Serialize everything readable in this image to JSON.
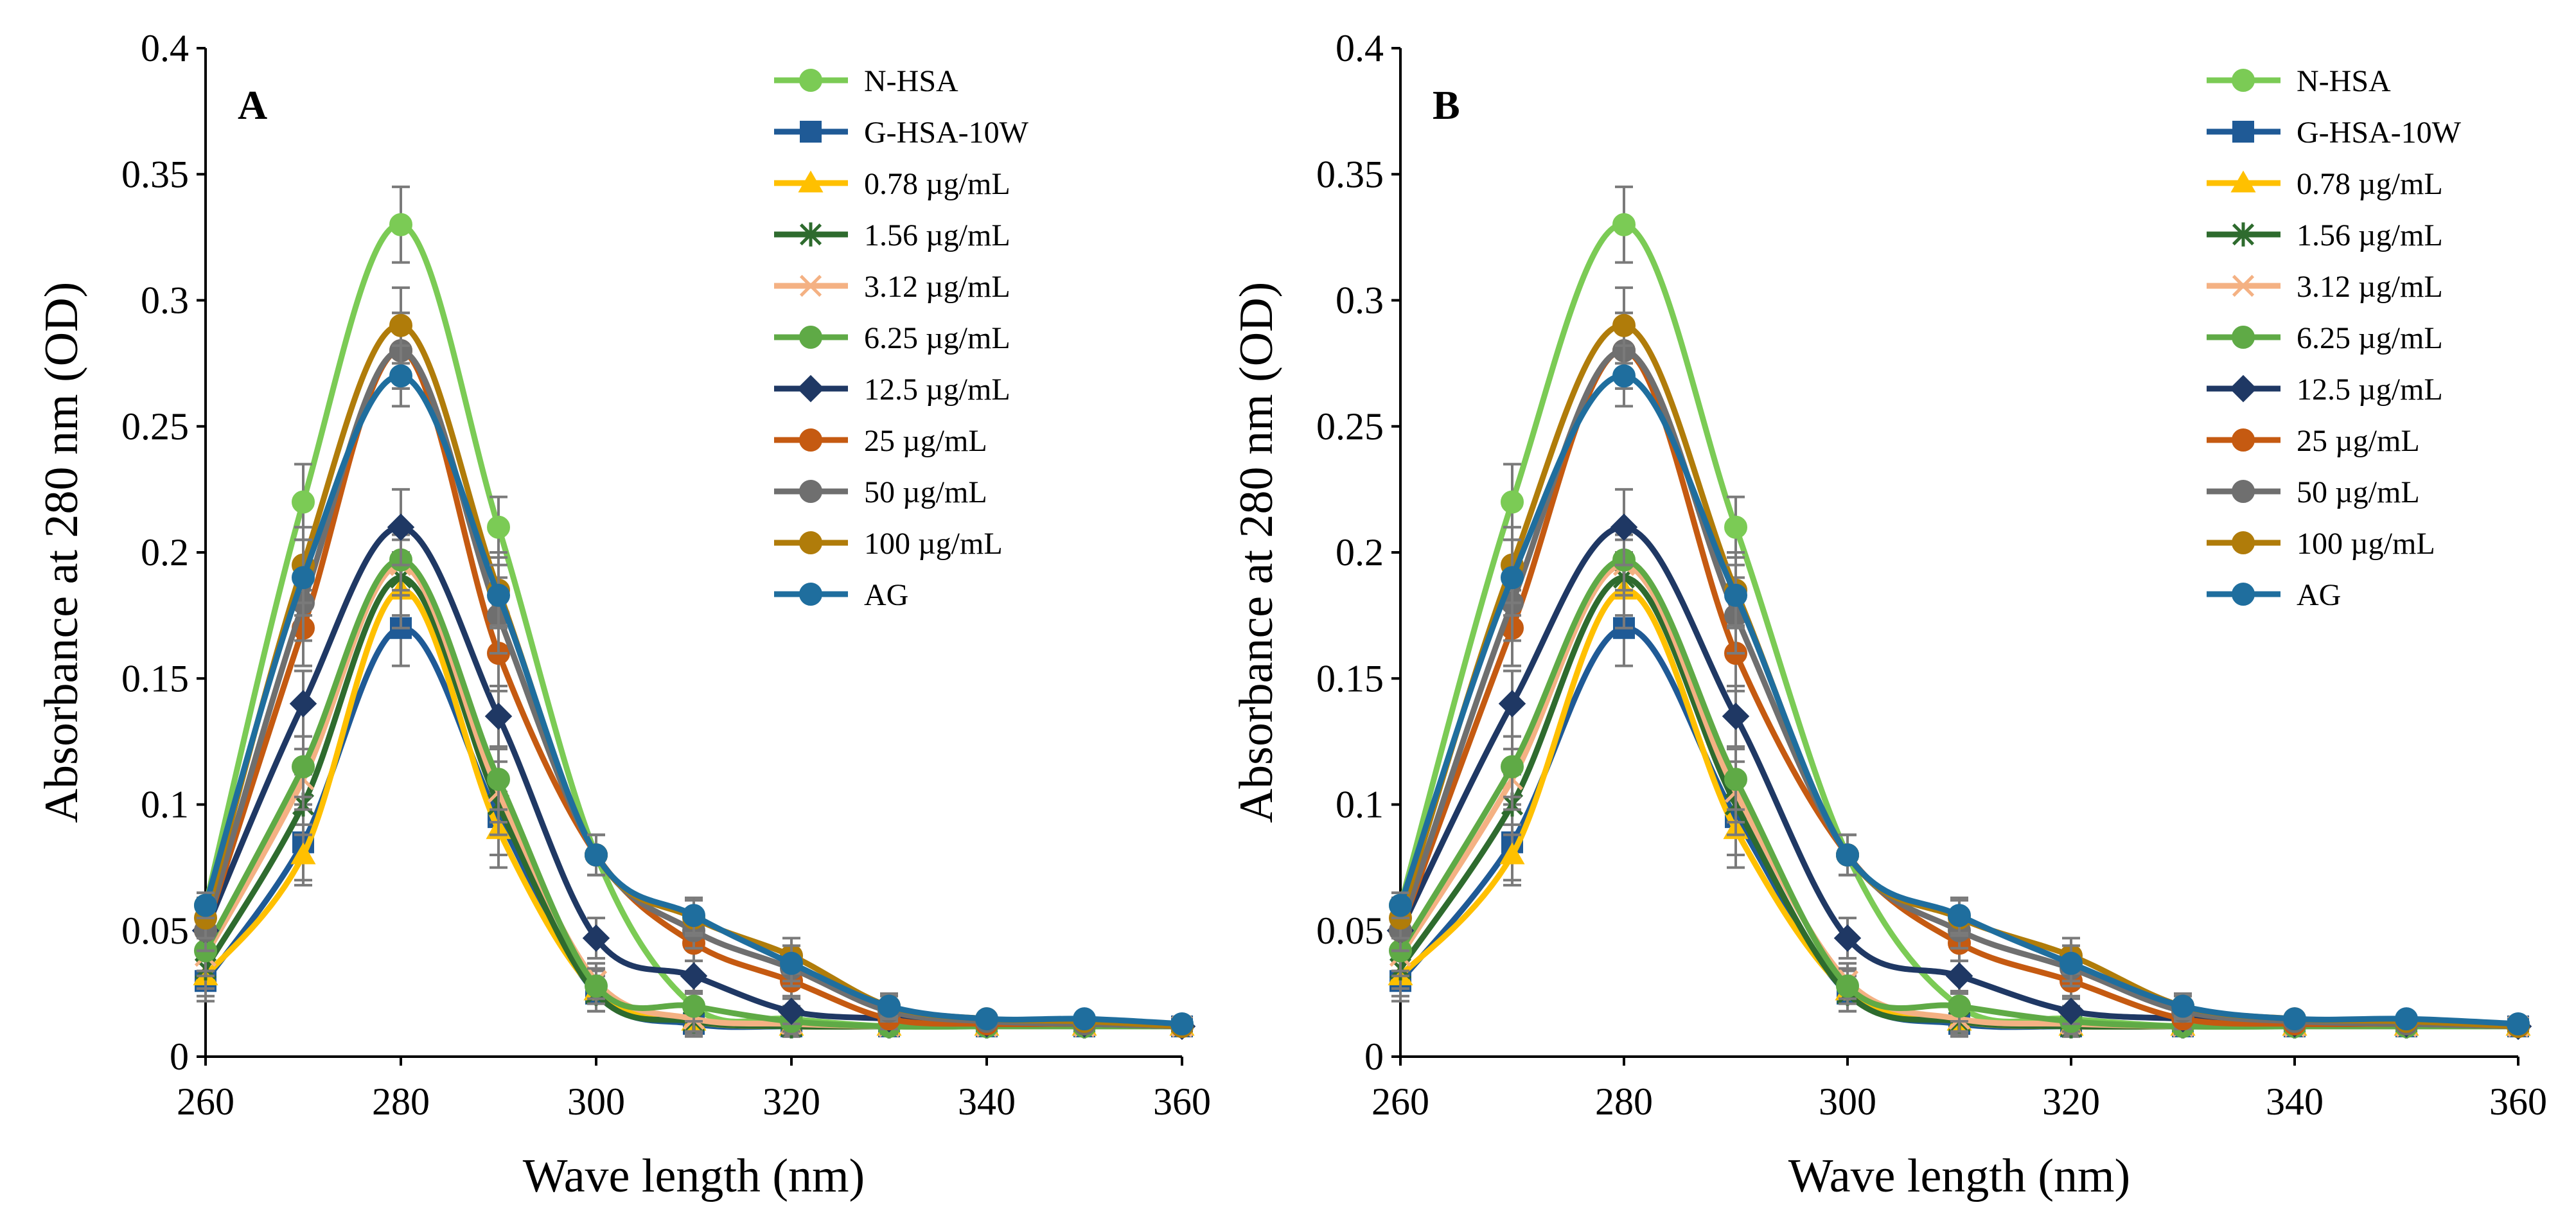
{
  "chart_data": [
    {
      "type": "line",
      "panel_label": "A",
      "xlabel": "Wave length (nm)",
      "ylabel": "Absorbance at 280 nm (OD)",
      "xlim": [
        260,
        360
      ],
      "ylim": [
        0,
        0.4
      ],
      "x_ticks": [
        260,
        280,
        300,
        320,
        340,
        360
      ],
      "y_ticks": [
        0,
        0.05,
        0.1,
        0.15,
        0.2,
        0.25,
        0.3,
        0.35,
        0.4
      ],
      "y_tick_labels": [
        "0",
        "0.05",
        "0.1",
        "0.15",
        "0.2",
        "0.25",
        "0.3",
        "0.35",
        "0.4"
      ],
      "legend_position": "top-right",
      "x": [
        260,
        270,
        280,
        290,
        300,
        310,
        320,
        330,
        340,
        350,
        360
      ],
      "series": [
        {
          "name": "N-HSA",
          "color": "#7BCB55",
          "marker": "circle",
          "values": [
            0.06,
            0.22,
            0.33,
            0.21,
            0.08,
            0.02,
            0.015,
            0.012,
            0.012,
            0.012,
            0.012
          ],
          "error": [
            0.005,
            0.015,
            0.015,
            0.012,
            0.008,
            0.005,
            0.005,
            0.003,
            0.002,
            0.002,
            0.002
          ]
        },
        {
          "name": "G-HSA-10W",
          "color": "#1F5A96",
          "marker": "square",
          "values": [
            0.03,
            0.085,
            0.17,
            0.095,
            0.025,
            0.013,
            0.012,
            0.012,
            0.012,
            0.012,
            0.012
          ],
          "error": [
            0.008,
            0.015,
            0.015,
            0.015,
            0.007,
            0.005,
            0.004,
            0.003,
            0.002,
            0.002,
            0.002
          ]
        },
        {
          "name": "0.78 µg/mL",
          "color": "#FFC000",
          "marker": "triangle",
          "values": [
            0.032,
            0.08,
            0.185,
            0.09,
            0.026,
            0.014,
            0.012,
            0.012,
            0.012,
            0.012,
            0.012
          ],
          "error": [
            0.008,
            0.012,
            0.015,
            0.015,
            0.008,
            0.005,
            0.004,
            0.003,
            0.002,
            0.002,
            0.002
          ]
        },
        {
          "name": "1.56 µg/mL",
          "color": "#2E6B2E",
          "marker": "asterisk",
          "values": [
            0.035,
            0.1,
            0.19,
            0.1,
            0.025,
            0.014,
            0.012,
            0.012,
            0.012,
            0.012,
            0.012
          ],
          "error": [
            0.008,
            0.012,
            0.015,
            0.012,
            0.007,
            0.005,
            0.004,
            0.003,
            0.002,
            0.002,
            0.002
          ]
        },
        {
          "name": "3.12 µg/mL",
          "color": "#F4B183",
          "marker": "x",
          "values": [
            0.04,
            0.11,
            0.195,
            0.105,
            0.03,
            0.015,
            0.013,
            0.012,
            0.012,
            0.012,
            0.012
          ],
          "error": [
            0.008,
            0.012,
            0.012,
            0.012,
            0.007,
            0.005,
            0.004,
            0.003,
            0.002,
            0.002,
            0.002
          ]
        },
        {
          "name": "6.25 µg/mL",
          "color": "#5FAA46",
          "marker": "circle",
          "values": [
            0.042,
            0.115,
            0.197,
            0.11,
            0.028,
            0.02,
            0.014,
            0.012,
            0.012,
            0.012,
            0.012
          ],
          "error": [
            0.008,
            0.012,
            0.012,
            0.012,
            0.007,
            0.006,
            0.004,
            0.003,
            0.002,
            0.002,
            0.002
          ]
        },
        {
          "name": "12.5 µg/mL",
          "color": "#1F3864",
          "marker": "diamond",
          "values": [
            0.05,
            0.14,
            0.21,
            0.135,
            0.047,
            0.032,
            0.018,
            0.015,
            0.013,
            0.013,
            0.012
          ],
          "error": [
            0.008,
            0.013,
            0.015,
            0.012,
            0.008,
            0.006,
            0.005,
            0.004,
            0.002,
            0.002,
            0.002
          ]
        },
        {
          "name": "25 µg/mL",
          "color": "#C55A11",
          "marker": "circle",
          "values": [
            0.05,
            0.17,
            0.28,
            0.16,
            0.08,
            0.045,
            0.03,
            0.015,
            0.013,
            0.013,
            0.012
          ],
          "error": [
            0.008,
            0.015,
            0.015,
            0.015,
            0.008,
            0.007,
            0.006,
            0.004,
            0.002,
            0.002,
            0.002
          ]
        },
        {
          "name": "50 µg/mL",
          "color": "#6F6F6F",
          "marker": "circle",
          "values": [
            0.05,
            0.18,
            0.28,
            0.175,
            0.08,
            0.05,
            0.035,
            0.018,
            0.014,
            0.013,
            0.012
          ],
          "error": [
            0.008,
            0.015,
            0.015,
            0.015,
            0.008,
            0.007,
            0.007,
            0.004,
            0.002,
            0.002,
            0.002
          ]
        },
        {
          "name": "100 µg/mL",
          "color": "#B07C0A",
          "marker": "circle",
          "values": [
            0.055,
            0.195,
            0.29,
            0.185,
            0.08,
            0.055,
            0.04,
            0.02,
            0.015,
            0.014,
            0.012
          ],
          "error": [
            0.008,
            0.015,
            0.015,
            0.015,
            0.008,
            0.007,
            0.007,
            0.004,
            0.002,
            0.002,
            0.002
          ]
        },
        {
          "name": "AG",
          "color": "#1F6E9E",
          "marker": "circle",
          "values": [
            0.06,
            0.19,
            0.27,
            0.183,
            0.08,
            0.056,
            0.037,
            0.02,
            0.015,
            0.015,
            0.013
          ],
          "error": [
            0.005,
            0.015,
            0.012,
            0.012,
            0.008,
            0.007,
            0.007,
            0.005,
            0.002,
            0.002,
            0.002
          ]
        }
      ]
    },
    {
      "type": "line",
      "panel_label": "B",
      "xlabel": "Wave length (nm)",
      "ylabel": "Absorbance at 280 nm (OD)",
      "xlim": [
        260,
        360
      ],
      "ylim": [
        0,
        0.4
      ],
      "x_ticks": [
        260,
        280,
        300,
        320,
        340,
        360
      ],
      "y_ticks": [
        0,
        0.05,
        0.1,
        0.15,
        0.2,
        0.25,
        0.3,
        0.35,
        0.4
      ],
      "y_tick_labels": [
        "0",
        "0.05",
        "0.1",
        "0.15",
        "0.2",
        "0.25",
        "0.3",
        "0.35",
        "0.4"
      ],
      "legend_position": "top-right",
      "x": [
        260,
        270,
        280,
        290,
        300,
        310,
        320,
        330,
        340,
        350,
        360
      ],
      "series": [
        {
          "name": "N-HSA",
          "color": "#7BCB55",
          "marker": "circle",
          "values": [
            0.06,
            0.22,
            0.33,
            0.21,
            0.08,
            0.02,
            0.015,
            0.012,
            0.012,
            0.012,
            0.012
          ],
          "error": [
            0.005,
            0.015,
            0.015,
            0.012,
            0.008,
            0.005,
            0.005,
            0.003,
            0.002,
            0.002,
            0.002
          ]
        },
        {
          "name": "G-HSA-10W",
          "color": "#1F5A96",
          "marker": "square",
          "values": [
            0.03,
            0.085,
            0.17,
            0.095,
            0.025,
            0.013,
            0.012,
            0.012,
            0.012,
            0.012,
            0.012
          ],
          "error": [
            0.008,
            0.015,
            0.015,
            0.015,
            0.007,
            0.005,
            0.004,
            0.003,
            0.002,
            0.002,
            0.002
          ]
        },
        {
          "name": "0.78 µg/mL",
          "color": "#FFC000",
          "marker": "triangle",
          "values": [
            0.032,
            0.08,
            0.185,
            0.09,
            0.026,
            0.014,
            0.012,
            0.012,
            0.012,
            0.012,
            0.012
          ],
          "error": [
            0.008,
            0.012,
            0.015,
            0.015,
            0.008,
            0.005,
            0.004,
            0.003,
            0.002,
            0.002,
            0.002
          ]
        },
        {
          "name": "1.56 µg/mL",
          "color": "#2E6B2E",
          "marker": "asterisk",
          "values": [
            0.035,
            0.1,
            0.19,
            0.1,
            0.025,
            0.014,
            0.012,
            0.012,
            0.012,
            0.012,
            0.012
          ],
          "error": [
            0.008,
            0.012,
            0.015,
            0.012,
            0.007,
            0.005,
            0.004,
            0.003,
            0.002,
            0.002,
            0.002
          ]
        },
        {
          "name": "3.12 µg/mL",
          "color": "#F4B183",
          "marker": "x",
          "values": [
            0.04,
            0.11,
            0.195,
            0.105,
            0.03,
            0.015,
            0.013,
            0.012,
            0.012,
            0.012,
            0.012
          ],
          "error": [
            0.008,
            0.012,
            0.012,
            0.012,
            0.007,
            0.005,
            0.004,
            0.003,
            0.002,
            0.002,
            0.002
          ]
        },
        {
          "name": "6.25 µg/mL",
          "color": "#5FAA46",
          "marker": "circle",
          "values": [
            0.042,
            0.115,
            0.197,
            0.11,
            0.028,
            0.02,
            0.014,
            0.012,
            0.012,
            0.012,
            0.012
          ],
          "error": [
            0.008,
            0.012,
            0.012,
            0.012,
            0.007,
            0.006,
            0.004,
            0.003,
            0.002,
            0.002,
            0.002
          ]
        },
        {
          "name": "12.5 µg/mL",
          "color": "#1F3864",
          "marker": "diamond",
          "values": [
            0.05,
            0.14,
            0.21,
            0.135,
            0.047,
            0.032,
            0.018,
            0.015,
            0.013,
            0.013,
            0.012
          ],
          "error": [
            0.008,
            0.013,
            0.015,
            0.012,
            0.008,
            0.006,
            0.005,
            0.004,
            0.002,
            0.002,
            0.002
          ]
        },
        {
          "name": "25 µg/mL",
          "color": "#C55A11",
          "marker": "circle",
          "values": [
            0.05,
            0.17,
            0.28,
            0.16,
            0.08,
            0.045,
            0.03,
            0.015,
            0.013,
            0.013,
            0.012
          ],
          "error": [
            0.008,
            0.015,
            0.015,
            0.015,
            0.008,
            0.007,
            0.006,
            0.004,
            0.002,
            0.002,
            0.002
          ]
        },
        {
          "name": "50 µg/mL",
          "color": "#6F6F6F",
          "marker": "circle",
          "values": [
            0.05,
            0.18,
            0.28,
            0.175,
            0.08,
            0.05,
            0.035,
            0.018,
            0.014,
            0.013,
            0.012
          ],
          "error": [
            0.008,
            0.015,
            0.015,
            0.015,
            0.008,
            0.007,
            0.007,
            0.004,
            0.002,
            0.002,
            0.002
          ]
        },
        {
          "name": "100 µg/mL",
          "color": "#B07C0A",
          "marker": "circle",
          "values": [
            0.055,
            0.195,
            0.29,
            0.185,
            0.08,
            0.055,
            0.04,
            0.02,
            0.015,
            0.014,
            0.012
          ],
          "error": [
            0.008,
            0.015,
            0.015,
            0.015,
            0.008,
            0.007,
            0.007,
            0.004,
            0.002,
            0.002,
            0.002
          ]
        },
        {
          "name": "AG",
          "color": "#1F6E9E",
          "marker": "circle",
          "values": [
            0.06,
            0.19,
            0.27,
            0.183,
            0.08,
            0.056,
            0.037,
            0.02,
            0.015,
            0.015,
            0.013
          ],
          "error": [
            0.005,
            0.015,
            0.012,
            0.012,
            0.008,
            0.007,
            0.007,
            0.005,
            0.002,
            0.002,
            0.002
          ]
        }
      ]
    }
  ]
}
